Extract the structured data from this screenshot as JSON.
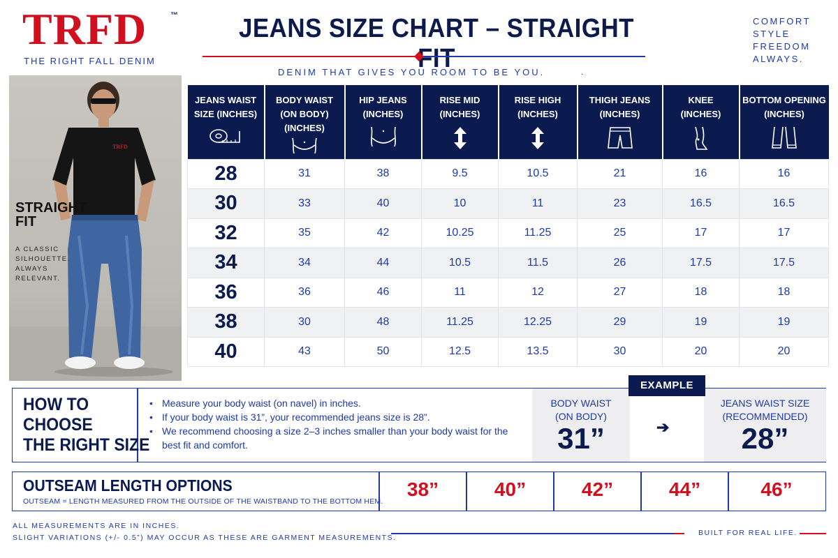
{
  "brand": {
    "logo": "TRFD",
    "trademark": "™",
    "tagline": "THE RIGHT FALL DENIM",
    "brand_red": "#d0101e",
    "brand_navy": "#0b1b4f"
  },
  "header": {
    "title": "JEANS SIZE CHART – STRAIGHT FIT",
    "subtitle": "DENIM THAT GIVES YOU ROOM TO BE YOU.",
    "subtitle_dot": "."
  },
  "motto": [
    "COMFORT",
    "STYLE",
    "FREEDOM",
    "ALWAYS."
  ],
  "photo": {
    "shirt_logo": "TRFD",
    "label_line1": "STRAIGHT",
    "label_line2": "FIT",
    "desc": [
      "A CLASSIC",
      "SILHOUETTE.",
      "ALWAYS",
      "RELEVANT."
    ]
  },
  "size_table": {
    "columns": [
      {
        "l1": "JEANS WAIST",
        "l2": "SIZE (INCHES)",
        "l3": "",
        "icon": "measuring-tape-icon"
      },
      {
        "l1": "BODY WAIST",
        "l2": "(ON BODY)",
        "l3": "(INCHES)",
        "icon": "body-waist-icon"
      },
      {
        "l1": "HIP JEANS",
        "l2": "(INCHES)",
        "l3": "",
        "icon": "hip-icon"
      },
      {
        "l1": "RISE MID",
        "l2": "(INCHES)",
        "l3": "",
        "icon": "vertical-arrow-icon"
      },
      {
        "l1": "RISE HIGH",
        "l2": "(INCHES)",
        "l3": "",
        "icon": "vertical-arrow-icon"
      },
      {
        "l1": "THIGH JEANS",
        "l2": "(INCHES)",
        "l3": "",
        "icon": "shorts-icon"
      },
      {
        "l1": "KNEE",
        "l2": "(INCHES)",
        "l3": "",
        "icon": "leg-icon"
      },
      {
        "l1": "BOTTOM OPENING",
        "l2": "(INCHES)",
        "l3": "",
        "icon": "jeans-bottom-icon"
      }
    ],
    "rows": [
      [
        "28",
        "31",
        "38",
        "9.5",
        "10.5",
        "21",
        "16",
        "16"
      ],
      [
        "30",
        "33",
        "40",
        "10",
        "11",
        "23",
        "16.5",
        "16.5"
      ],
      [
        "32",
        "35",
        "42",
        "10.25",
        "11.25",
        "25",
        "17",
        "17"
      ],
      [
        "34",
        "34",
        "44",
        "10.5",
        "11.5",
        "26",
        "17.5",
        "17.5"
      ],
      [
        "36",
        "36",
        "46",
        "11",
        "12",
        "27",
        "18",
        "18"
      ],
      [
        "38",
        "30",
        "48",
        "11.25",
        "12.25",
        "29",
        "19",
        "19"
      ],
      [
        "40",
        "43",
        "50",
        "12.5",
        "13.5",
        "30",
        "20",
        "20"
      ]
    ]
  },
  "how_to": {
    "title": [
      "HOW TO",
      "CHOOSE",
      "THE RIGHT SIZE"
    ],
    "bullets": [
      "Measure your body waist (on navel) in inches.",
      "If your body waist is 31”, your recommended jeans size is 28”.",
      "We recommend choosing a size 2–3 inches smaller than your body waist for the best fit and comfort."
    ],
    "example_label": "EXAMPLE",
    "from_label_1": "BODY WAIST",
    "from_label_2": "(ON BODY)",
    "from_value": "31”",
    "arrow": "➔",
    "to_label_1": "JEANS WAIST SIZE",
    "to_label_2": "(RECOMMENDED)",
    "to_value": "28”"
  },
  "outseam": {
    "title": "OUTSEAM LENGTH OPTIONS",
    "note": "OUTSEAM = LENGTH MEASURED FROM THE OUTSIDE OF THE WAISTBAND TO THE BOTTOM HEM.",
    "options": [
      "38”",
      "40”",
      "42”",
      "44”",
      "46”"
    ]
  },
  "footer": {
    "line1": "ALL MEASUREMENTS ARE IN INCHES.",
    "line2": "SLIGHT VARIATIONS (+/- 0.5”) MAY OCCUR AS THESE ARE GARMENT MEASUREMENTS.",
    "built": "BUILT FOR REAL LIFE."
  }
}
